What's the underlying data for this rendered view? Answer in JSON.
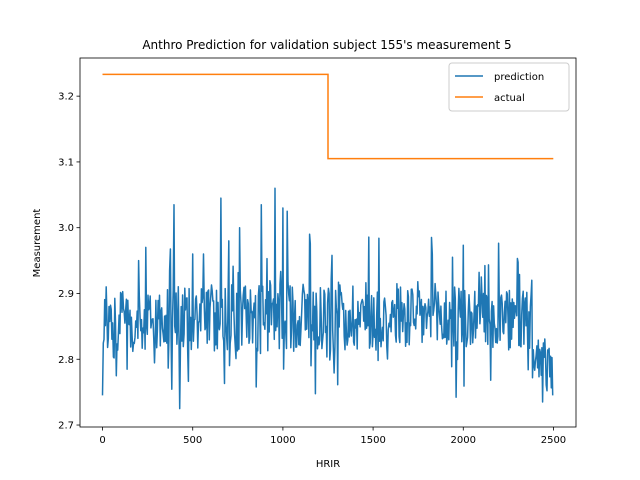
{
  "chart_data": {
    "type": "line",
    "title": "Anthro Prediction for validation subject 155's measurement 5",
    "xlabel": "HRIR",
    "ylabel": "Measurement",
    "xlim": [
      -125,
      2625
    ],
    "ylim": [
      2.697,
      3.258
    ],
    "xticks": [
      0,
      500,
      1000,
      1500,
      2000,
      2500
    ],
    "xtick_labels": [
      "0",
      "500",
      "1000",
      "1500",
      "2000",
      "2500"
    ],
    "yticks": [
      2.7,
      2.8,
      2.9,
      3.0,
      3.1,
      3.2
    ],
    "ytick_labels": [
      "2.7",
      "2.8",
      "2.9",
      "3.0",
      "3.1",
      "3.2"
    ],
    "grid": false,
    "legend_position": "upper right",
    "series": [
      {
        "name": "prediction",
        "color": "#1f77b4",
        "note_values": "dense noisy signal over x = 0..2499, mean approx 2.85, range approx 2.72 to 3.06",
        "x_range": [
          0,
          2499
        ],
        "keypoints": [
          {
            "x": 0,
            "y": 2.745
          },
          {
            "x": 10,
            "y": 2.83
          },
          {
            "x": 20,
            "y": 2.91
          },
          {
            "x": 200,
            "y": 2.95
          },
          {
            "x": 240,
            "y": 2.97
          },
          {
            "x": 395,
            "y": 3.035
          },
          {
            "x": 430,
            "y": 2.725
          },
          {
            "x": 500,
            "y": 2.96
          },
          {
            "x": 560,
            "y": 2.96
          },
          {
            "x": 655,
            "y": 3.045
          },
          {
            "x": 700,
            "y": 2.98
          },
          {
            "x": 760,
            "y": 3.0
          },
          {
            "x": 880,
            "y": 3.035
          },
          {
            "x": 955,
            "y": 3.06
          },
          {
            "x": 1000,
            "y": 3.03
          },
          {
            "x": 1025,
            "y": 3.025
          },
          {
            "x": 1150,
            "y": 2.99
          },
          {
            "x": 1830,
            "y": 2.96
          },
          {
            "x": 1940,
            "y": 2.955
          },
          {
            "x": 2100,
            "y": 2.925
          },
          {
            "x": 2380,
            "y": 2.92
          },
          {
            "x": 2440,
            "y": 2.735
          },
          {
            "x": 2499,
            "y": 2.745
          }
        ]
      },
      {
        "name": "actual",
        "color": "#ff7f0e",
        "x": [
          0,
          1250,
          1250,
          2499
        ],
        "y": [
          3.233,
          3.233,
          3.105,
          3.105
        ]
      }
    ]
  }
}
